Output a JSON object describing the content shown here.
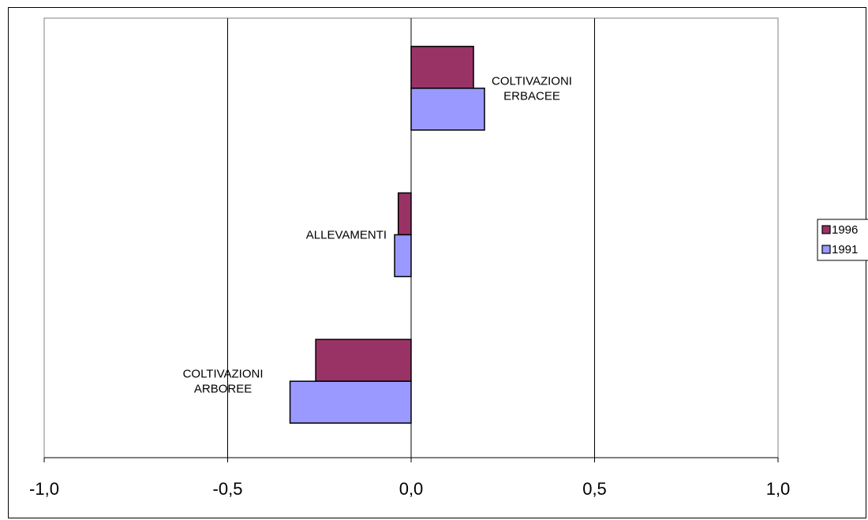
{
  "chart_data": {
    "type": "bar",
    "orientation": "horizontal",
    "categories": [
      "COLTIVAZIONI ERBACEE",
      "ALLEVAMENTI",
      "COLTIVAZIONI ARBOREE"
    ],
    "category_label_lines": [
      [
        "COLTIVAZIONI",
        "ERBACEE"
      ],
      [
        "ALLEVAMENTI"
      ],
      [
        "COLTIVAZIONI",
        "ARBOREE"
      ]
    ],
    "series": [
      {
        "name": "1996",
        "values": [
          0.17,
          -0.035,
          -0.26
        ],
        "color": "#993366"
      },
      {
        "name": "1991",
        "values": [
          0.2,
          -0.045,
          -0.33
        ],
        "color": "#9999ff"
      }
    ],
    "xlim": [
      -1.0,
      1.0
    ],
    "x_ticks": [
      -1.0,
      -0.5,
      0.0,
      0.5,
      1.0
    ],
    "x_tick_labels": [
      "-1,0",
      "-0,5",
      "0,0",
      "0,5",
      "1,0"
    ],
    "gridlines": "vertical",
    "legend_position": "right",
    "title": "",
    "xlabel": "",
    "ylabel": ""
  }
}
